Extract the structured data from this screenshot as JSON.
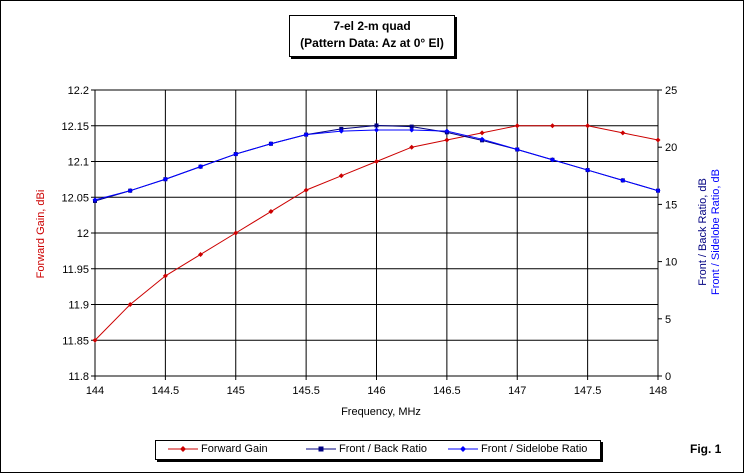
{
  "chart_data": {
    "type": "line",
    "title": "7-el 2-m quad",
    "subtitle": "(Pattern Data: Az at 0° El)",
    "xlabel": "Frequency, MHz",
    "ylabel_left": "Forward Gain, dBi",
    "ylabel_right_1": "Front / Back Ratio,  dB",
    "ylabel_right_2": "Front / Sidelobe Ratio,  dB",
    "xlim": [
      144,
      148
    ],
    "ylim_left": [
      11.8,
      12.2
    ],
    "ylim_right": [
      0,
      25
    ],
    "x_ticks": [
      "144",
      "144.5",
      "145",
      "145.5",
      "146",
      "146.5",
      "147",
      "147.5",
      "148"
    ],
    "y_ticks_left": [
      "11.8",
      "11.85",
      "11.9",
      "11.95",
      "12",
      "12.05",
      "12.1",
      "12.15",
      "12.2"
    ],
    "y_ticks_right": [
      "0",
      "5",
      "10",
      "15",
      "20",
      "25"
    ],
    "grid": true,
    "x": [
      144,
      144.25,
      144.5,
      144.75,
      145,
      145.25,
      145.5,
      145.75,
      146,
      146.25,
      146.5,
      146.75,
      147,
      147.25,
      147.5,
      147.75,
      148
    ],
    "series": [
      {
        "name": "Forward Gain",
        "axis": "left",
        "color": "#cc0000",
        "marker": "diamond",
        "values": [
          11.85,
          11.9,
          11.94,
          11.97,
          12.0,
          12.03,
          12.06,
          12.08,
          12.1,
          12.12,
          12.13,
          12.14,
          12.15,
          12.15,
          12.15,
          12.14,
          12.13
        ]
      },
      {
        "name": "Front / Back Ratio",
        "axis": "right",
        "color": "#000080",
        "marker": "square",
        "values": [
          15.3,
          16.2,
          17.2,
          18.3,
          19.4,
          20.3,
          21.1,
          21.6,
          21.9,
          21.8,
          21.3,
          20.6,
          19.8,
          18.9,
          18.0,
          17.1,
          16.2
        ]
      },
      {
        "name": "Front / Sidelobe Ratio",
        "axis": "right",
        "color": "#0000ff",
        "marker": "diamond",
        "values": [
          15.4,
          16.2,
          17.2,
          18.3,
          19.4,
          20.3,
          21.1,
          21.4,
          21.5,
          21.5,
          21.4,
          20.7,
          19.8,
          18.9,
          18.0,
          17.1,
          16.2
        ]
      }
    ]
  },
  "figure_label": "Fig. 1"
}
